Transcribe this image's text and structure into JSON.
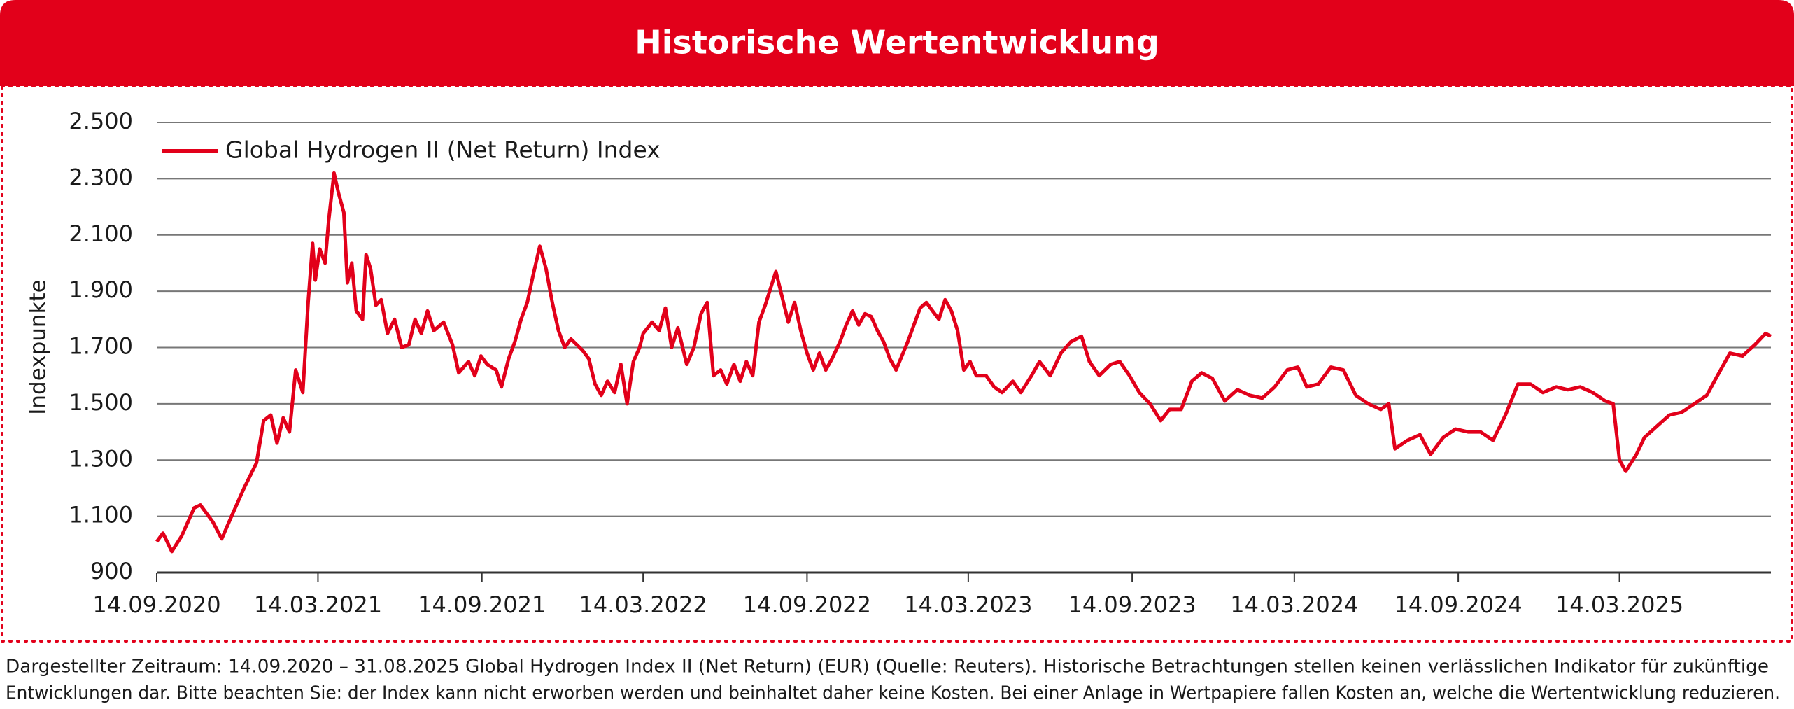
{
  "chart_data": {
    "type": "line",
    "title": "Historische Wertentwicklung",
    "ylabel": "Indexpunkte",
    "ylim": [
      900,
      2500
    ],
    "yticks": [
      900,
      {
        "value": 1100,
        "label": "1.100"
      },
      {
        "value": 1300,
        "label": "1.300"
      },
      {
        "value": 1500,
        "label": "1.500"
      },
      {
        "value": 1700,
        "label": "1.700"
      },
      {
        "value": 1900,
        "label": "1.900"
      },
      {
        "value": 2100,
        "label": "2.100"
      },
      {
        "value": 2300,
        "label": "2.300"
      },
      {
        "value": 2500,
        "label": "2.500"
      }
    ],
    "xlim": [
      "2020-09-14",
      "2025-08-31"
    ],
    "xticks": [
      {
        "value": "2020-09-14",
        "label": "14.09.2020"
      },
      {
        "value": "2021-03-14",
        "label": "14.03.2021"
      },
      {
        "value": "2021-09-14",
        "label": "14.09.2021"
      },
      {
        "value": "2022-03-14",
        "label": "14.03.2022"
      },
      {
        "value": "2022-09-14",
        "label": "14.09.2022"
      },
      {
        "value": "2023-03-14",
        "label": "14.03.2023"
      },
      {
        "value": "2023-09-14",
        "label": "14.09.2023"
      },
      {
        "value": "2024-03-14",
        "label": "14.03.2024"
      },
      {
        "value": "2024-09-14",
        "label": "14.09.2024"
      },
      {
        "value": "2025-03-14",
        "label": "14.03.2025"
      }
    ],
    "grid": true,
    "legend": "upper left",
    "x": [
      "2020-09-14",
      "2020-09-21",
      "2020-10-01",
      "2020-10-12",
      "2020-10-26",
      "2020-11-02",
      "2020-11-16",
      "2020-11-26",
      "2020-12-07",
      "2020-12-21",
      "2021-01-04",
      "2021-01-12",
      "2021-01-20",
      "2021-01-27",
      "2021-02-03",
      "2021-02-10",
      "2021-02-17",
      "2021-02-25",
      "2021-03-03",
      "2021-03-08",
      "2021-03-11",
      "2021-03-16",
      "2021-03-22",
      "2021-03-26",
      "2021-04-01",
      "2021-04-06",
      "2021-04-12",
      "2021-04-16",
      "2021-04-21",
      "2021-04-26",
      "2021-05-03",
      "2021-05-07",
      "2021-05-12",
      "2021-05-18",
      "2021-05-24",
      "2021-05-31",
      "2021-06-08",
      "2021-06-16",
      "2021-06-24",
      "2021-07-01",
      "2021-07-08",
      "2021-07-15",
      "2021-07-22",
      "2021-08-02",
      "2021-08-12",
      "2021-08-19",
      "2021-08-30",
      "2021-09-06",
      "2021-09-13",
      "2021-09-20",
      "2021-09-30",
      "2021-10-06",
      "2021-10-14",
      "2021-10-21",
      "2021-10-28",
      "2021-11-04",
      "2021-11-10",
      "2021-11-18",
      "2021-11-25",
      "2021-12-02",
      "2021-12-09",
      "2021-12-16",
      "2021-12-23",
      "2022-01-05",
      "2022-01-12",
      "2022-01-19",
      "2022-01-26",
      "2022-02-02",
      "2022-02-10",
      "2022-02-17",
      "2022-02-24",
      "2022-03-03",
      "2022-03-10",
      "2022-03-14",
      "2022-03-24",
      "2022-04-01",
      "2022-04-08",
      "2022-04-15",
      "2022-04-22",
      "2022-05-02",
      "2022-05-10",
      "2022-05-18",
      "2022-05-25",
      "2022-06-01",
      "2022-06-09",
      "2022-06-16",
      "2022-06-24",
      "2022-07-01",
      "2022-07-08",
      "2022-07-15",
      "2022-07-22",
      "2022-07-29",
      "2022-08-05",
      "2022-08-10",
      "2022-08-17",
      "2022-08-24",
      "2022-08-31",
      "2022-09-07",
      "2022-09-14",
      "2022-09-21",
      "2022-09-28",
      "2022-10-05",
      "2022-10-12",
      "2022-10-21",
      "2022-10-28",
      "2022-11-04",
      "2022-11-11",
      "2022-11-18",
      "2022-11-25",
      "2022-12-02",
      "2022-12-09",
      "2022-12-16",
      "2022-12-23",
      "2023-01-05",
      "2023-01-12",
      "2023-01-19",
      "2023-01-26",
      "2023-02-02",
      "2023-02-09",
      "2023-02-16",
      "2023-02-23",
      "2023-03-02",
      "2023-03-09",
      "2023-03-16",
      "2023-03-23",
      "2023-04-03",
      "2023-04-12",
      "2023-04-21",
      "2023-05-03",
      "2023-05-12",
      "2023-05-24",
      "2023-06-02",
      "2023-06-14",
      "2023-06-26",
      "2023-07-07",
      "2023-07-19",
      "2023-07-28",
      "2023-08-08",
      "2023-08-21",
      "2023-08-31",
      "2023-09-11",
      "2023-09-22",
      "2023-10-04",
      "2023-10-16",
      "2023-10-26",
      "2023-11-08",
      "2023-11-20",
      "2023-12-01",
      "2023-12-13",
      "2023-12-27",
      "2024-01-10",
      "2024-01-24",
      "2024-02-07",
      "2024-02-21",
      "2024-03-06",
      "2024-03-18",
      "2024-03-28",
      "2024-04-10",
      "2024-04-24",
      "2024-05-08",
      "2024-05-22",
      "2024-06-05",
      "2024-06-19",
      "2024-06-28",
      "2024-07-05",
      "2024-07-19",
      "2024-08-02",
      "2024-08-14",
      "2024-08-28",
      "2024-09-11",
      "2024-09-25",
      "2024-10-09",
      "2024-10-23",
      "2024-11-06",
      "2024-11-20",
      "2024-12-04",
      "2024-12-18",
      "2025-01-02",
      "2025-01-15",
      "2025-01-29",
      "2025-02-12",
      "2025-02-26",
      "2025-03-07",
      "2025-03-14",
      "2025-03-21",
      "2025-04-02",
      "2025-04-11",
      "2025-04-25",
      "2025-05-09",
      "2025-05-23",
      "2025-06-06",
      "2025-06-20",
      "2025-07-02",
      "2025-07-16",
      "2025-07-30",
      "2025-08-13",
      "2025-08-25",
      "2025-08-31"
    ],
    "series": [
      {
        "name": "Global Hydrogen II (Net Return) Index",
        "color": "#e2001a",
        "values": [
          1010,
          1040,
          975,
          1030,
          1130,
          1140,
          1080,
          1020,
          1100,
          1200,
          1290,
          1440,
          1460,
          1360,
          1450,
          1400,
          1620,
          1540,
          1860,
          2070,
          1940,
          2050,
          2000,
          2150,
          2320,
          2250,
          2180,
          1930,
          2000,
          1830,
          1800,
          2030,
          1980,
          1850,
          1870,
          1750,
          1800,
          1700,
          1710,
          1800,
          1750,
          1830,
          1760,
          1790,
          1710,
          1610,
          1650,
          1600,
          1670,
          1640,
          1620,
          1560,
          1660,
          1720,
          1800,
          1860,
          1950,
          2060,
          1980,
          1860,
          1760,
          1700,
          1730,
          1690,
          1660,
          1570,
          1530,
          1580,
          1540,
          1640,
          1500,
          1650,
          1700,
          1750,
          1790,
          1760,
          1840,
          1700,
          1770,
          1640,
          1700,
          1820,
          1860,
          1600,
          1620,
          1570,
          1640,
          1580,
          1650,
          1600,
          1790,
          1850,
          1920,
          1970,
          1880,
          1790,
          1860,
          1760,
          1680,
          1620,
          1680,
          1620,
          1660,
          1720,
          1780,
          1830,
          1780,
          1820,
          1810,
          1760,
          1720,
          1660,
          1620,
          1720,
          1780,
          1840,
          1860,
          1830,
          1800,
          1870,
          1830,
          1760,
          1620,
          1650,
          1600,
          1600,
          1560,
          1540,
          1580,
          1540,
          1600,
          1650,
          1600,
          1680,
          1720,
          1740,
          1650,
          1600,
          1640,
          1650,
          1600,
          1540,
          1500,
          1440,
          1480,
          1480,
          1580,
          1610,
          1590,
          1510,
          1550,
          1530,
          1520,
          1560,
          1620,
          1630,
          1560,
          1570,
          1630,
          1620,
          1530,
          1500,
          1480,
          1500,
          1340,
          1370,
          1390,
          1320,
          1380,
          1410,
          1400,
          1400,
          1370,
          1460,
          1570,
          1570,
          1540,
          1560,
          1550,
          1560,
          1540,
          1510,
          1500,
          1300,
          1260,
          1320,
          1380,
          1420,
          1460,
          1470,
          1500,
          1530,
          1600,
          1680,
          1670,
          1710,
          1750,
          1740
        ]
      }
    ]
  },
  "footer": {
    "lines": [
      "Dargestellter Zeitraum: 14.09.2020 – 31.08.2025 Global Hydrogen Index II (Net Return) (EUR) (Quelle: Reuters). Historische Betrachtungen stellen keinen verlässlichen Indikator für zukünftige",
      "Entwicklungen dar. Bitte beachten Sie: der Index kann nicht erworben werden und beinhaltet daher keine Kosten. Bei einer Anlage in Wertpapiere fallen Kosten an, welche die Wertentwicklung reduzieren."
    ]
  }
}
